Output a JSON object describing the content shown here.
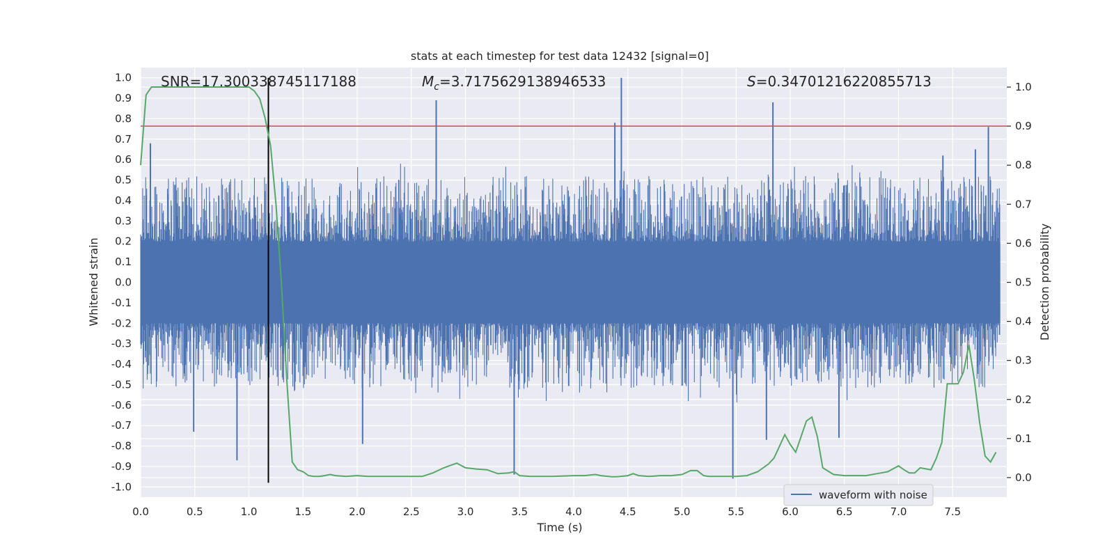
{
  "chart_data": {
    "type": "line",
    "title": "stats at each timestep for test data 12432 [signal=0]",
    "xlabel": "Time (s)",
    "ylabel_left": "Whitened strain",
    "ylabel_right": "Detection probability",
    "xlim": [
      0.0,
      8.0
    ],
    "ylim_left": [
      -1.05,
      1.05
    ],
    "ylim_right": [
      -0.05,
      1.05
    ],
    "x_ticks": [
      "0.0",
      "0.5",
      "1.0",
      "1.5",
      "2.0",
      "2.5",
      "3.0",
      "3.5",
      "4.0",
      "4.5",
      "5.0",
      "5.5",
      "6.0",
      "6.5",
      "7.0",
      "7.5"
    ],
    "y_ticks_left": [
      "1.0",
      "0.9",
      "0.8",
      "0.7",
      "0.6",
      "0.5",
      "0.4",
      "0.3",
      "0.2",
      "0.1",
      "0.0",
      "-0.1",
      "-0.2",
      "-0.3",
      "-0.4",
      "-0.5",
      "-0.6",
      "-0.7",
      "-0.8",
      "-0.9",
      "-1.0"
    ],
    "y_ticks_right": [
      "1.0",
      "0.9",
      "0.8",
      "0.7",
      "0.6",
      "0.5",
      "0.4",
      "0.3",
      "0.2",
      "0.1",
      "0.0"
    ],
    "grid": true,
    "legend": {
      "position": "bottom-right",
      "entries": [
        "waveform with noise"
      ]
    },
    "annotations": {
      "snr": "SNR=17.300338745117188",
      "mc_symbol": "M",
      "mc_subscript": "c",
      "mc_value": "=3.7175629138946533",
      "s_symbol": "S",
      "s_value": "=0.34701216220855713"
    },
    "threshold_line": {
      "y_right": 0.9,
      "color": "#c44e52"
    },
    "vertical_line": {
      "x": 1.18,
      "color": "#000000"
    },
    "colors": {
      "waveform": "#4c72b0",
      "probability": "#55a868",
      "background": "#eaeaf2"
    },
    "waveform_envelope": {
      "core_low": -0.2,
      "core_high": 0.2,
      "typical_low": -0.4,
      "typical_high": 0.4,
      "max_value": 1.0,
      "min_value": -0.96
    },
    "waveform_spikes": [
      {
        "x": 0.09,
        "y": 0.68
      },
      {
        "x": 0.89,
        "y": -0.87
      },
      {
        "x": 0.49,
        "y": -0.73
      },
      {
        "x": 2.05,
        "y": -0.79
      },
      {
        "x": 2.73,
        "y": 0.89
      },
      {
        "x": 3.45,
        "y": -0.94
      },
      {
        "x": 4.44,
        "y": 1.0
      },
      {
        "x": 4.38,
        "y": 0.78
      },
      {
        "x": 5.47,
        "y": -0.96
      },
      {
        "x": 5.84,
        "y": 0.88
      },
      {
        "x": 5.78,
        "y": -0.77
      },
      {
        "x": 6.45,
        "y": -0.76
      },
      {
        "x": 7.83,
        "y": 0.76
      },
      {
        "x": 7.41,
        "y": 0.62
      },
      {
        "x": 7.71,
        "y": 0.65
      }
    ],
    "detection_probability": {
      "x": [
        0.0,
        0.05,
        0.1,
        0.2,
        0.3,
        0.4,
        0.5,
        0.6,
        0.7,
        0.8,
        0.9,
        1.0,
        1.05,
        1.1,
        1.15,
        1.2,
        1.25,
        1.3,
        1.35,
        1.4,
        1.45,
        1.5,
        1.55,
        1.6,
        1.65,
        1.7,
        1.75,
        1.8,
        1.9,
        2.0,
        2.1,
        2.2,
        2.4,
        2.6,
        2.7,
        2.8,
        2.85,
        2.92,
        3.0,
        3.1,
        3.2,
        3.3,
        3.4,
        3.45,
        3.5,
        3.6,
        3.8,
        4.0,
        4.1,
        4.2,
        4.25,
        4.35,
        4.4,
        4.5,
        4.55,
        4.6,
        4.7,
        4.8,
        4.9,
        5.0,
        5.08,
        5.14,
        5.2,
        5.25,
        5.35,
        5.5,
        5.6,
        5.7,
        5.8,
        5.85,
        5.95,
        6.0,
        6.05,
        6.15,
        6.2,
        6.25,
        6.3,
        6.4,
        6.5,
        6.7,
        6.8,
        6.9,
        7.0,
        7.05,
        7.1,
        7.15,
        7.2,
        7.3,
        7.35,
        7.4,
        7.45,
        7.5,
        7.55,
        7.6,
        7.65,
        7.7,
        7.75,
        7.8,
        7.85,
        7.9
      ],
      "y": [
        0.8,
        0.98,
        1.0,
        1.0,
        1.0,
        1.0,
        1.0,
        1.0,
        1.0,
        1.0,
        1.0,
        1.0,
        0.99,
        0.97,
        0.92,
        0.85,
        0.7,
        0.5,
        0.25,
        0.04,
        0.02,
        0.015,
        0.005,
        0.003,
        0.003,
        0.005,
        0.008,
        0.005,
        0.003,
        0.005,
        0.003,
        0.003,
        0.003,
        0.003,
        0.012,
        0.025,
        0.03,
        0.037,
        0.025,
        0.022,
        0.02,
        0.01,
        0.012,
        0.015,
        0.005,
        0.003,
        0.003,
        0.005,
        0.005,
        0.008,
        0.005,
        0.002,
        0.002,
        0.005,
        0.01,
        0.005,
        0.003,
        0.005,
        0.005,
        0.008,
        0.018,
        0.018,
        0.005,
        0.003,
        0.003,
        0.003,
        0.005,
        0.015,
        0.035,
        0.05,
        0.11,
        0.085,
        0.065,
        0.145,
        0.155,
        0.105,
        0.025,
        0.008,
        0.005,
        0.005,
        0.01,
        0.015,
        0.03,
        0.02,
        0.012,
        0.012,
        0.025,
        0.02,
        0.05,
        0.09,
        0.24,
        0.24,
        0.24,
        0.27,
        0.34,
        0.25,
        0.14,
        0.055,
        0.04,
        0.065
      ]
    }
  }
}
